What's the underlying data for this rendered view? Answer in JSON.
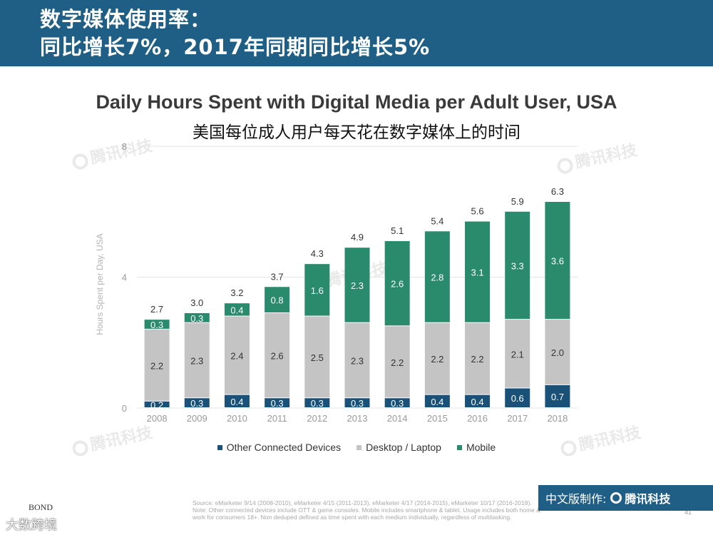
{
  "header": {
    "line1": "数字媒体使用率：",
    "line2": "同比增长7%，2017年同期同比增长5%"
  },
  "watermark": {
    "text": "腾讯科技"
  },
  "chart_data": {
    "type": "bar",
    "stacked": true,
    "title": "Daily Hours Spent with Digital Media per Adult User, USA",
    "subtitle": "美国每位成人用户每天花在数字媒体上的时间",
    "xlabel": "",
    "ylabel": "Hours Spent per Day, USA",
    "ylim": [
      0,
      8
    ],
    "yticks": [
      "0",
      "4",
      "8"
    ],
    "grid": true,
    "legend_position": "bottom",
    "categories": [
      "2008",
      "2009",
      "2010",
      "2011",
      "2012",
      "2013",
      "2014",
      "2015",
      "2016",
      "2017",
      "2018"
    ],
    "totals": [
      "2.7",
      "3.0",
      "3.2",
      "3.7",
      "4.3",
      "4.9",
      "5.1",
      "5.4",
      "5.6",
      "5.9",
      "6.3"
    ],
    "series": [
      {
        "name": "Other Connected Devices",
        "color": "#1a5179",
        "values": [
          0.2,
          0.3,
          0.4,
          0.3,
          0.3,
          0.3,
          0.3,
          0.4,
          0.4,
          0.6,
          0.7
        ],
        "labels": [
          "0.2",
          "0.3",
          "0.4",
          "0.3",
          "0.3",
          "0.3",
          "0.3",
          "0.4",
          "0.4",
          "0.6",
          "0.7"
        ]
      },
      {
        "name": "Desktop / Laptop",
        "color": "#c4c4c4",
        "values": [
          2.2,
          2.3,
          2.4,
          2.6,
          2.5,
          2.3,
          2.2,
          2.2,
          2.2,
          2.1,
          2.0
        ],
        "labels": [
          "2.2",
          "2.3",
          "2.4",
          "2.6",
          "2.5",
          "2.3",
          "2.2",
          "2.2",
          "2.2",
          "2.1",
          "2.0"
        ]
      },
      {
        "name": "Mobile",
        "color": "#2a8a6c",
        "values": [
          0.3,
          0.3,
          0.4,
          0.8,
          1.6,
          2.3,
          2.6,
          2.8,
          3.1,
          3.3,
          3.6
        ],
        "labels": [
          "0.3",
          "0.3",
          "0.4",
          "0.8",
          "1.6",
          "2.3",
          "2.6",
          "2.8",
          "3.1",
          "3.3",
          "3.6"
        ]
      }
    ]
  },
  "footer": {
    "source_line1": "Source: eMarketer 9/14 (2008-2010), eMarketer 4/15 (2011-2013), eMarketer 4/17 (2014-2015), eMarketer 10/17 (2016-2018).",
    "source_line2": "Note: Other connected devices include OTT & game consoles. Mobile includes smartphone & tablet. Usage includes both home &",
    "source_line3": "work for consumers 18+. Non deduped defined as time spent with each medium individually, regardless of multitasking.",
    "page_number": "41",
    "credit_label": "中文版制作:",
    "credit_brand": "腾讯科技",
    "bond": "BOND",
    "cross_border": "大数跨境"
  }
}
